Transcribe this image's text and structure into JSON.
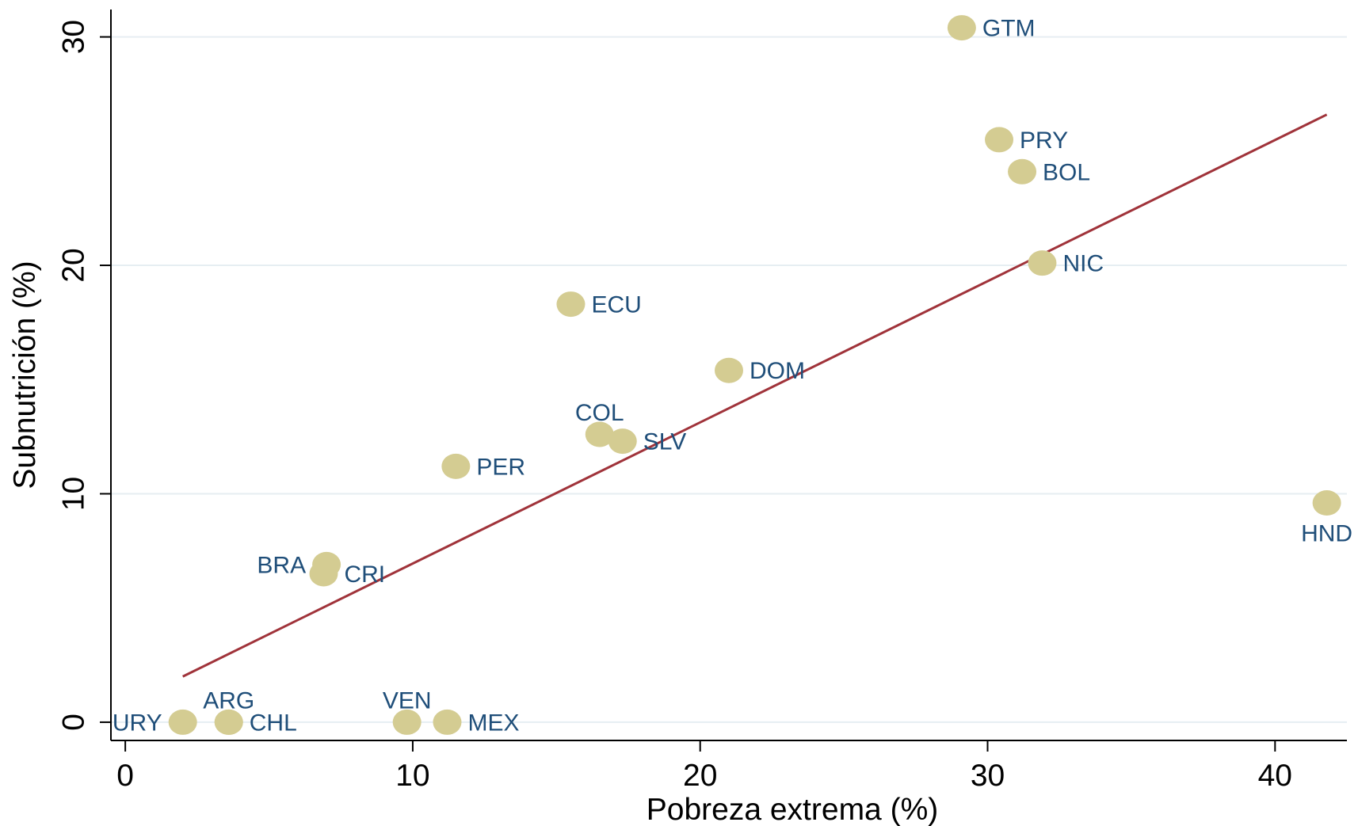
{
  "chart_data": {
    "type": "scatter",
    "xlabel": "Pobreza extrema (%)",
    "ylabel": "Subnutrición (%)",
    "xlim": [
      -0.5,
      42.5
    ],
    "ylim": [
      -0.8,
      31.2
    ],
    "xticks": [
      0,
      10,
      20,
      30,
      40
    ],
    "yticks": [
      0,
      10,
      20,
      30
    ],
    "grid": "horizontal",
    "legend": "none",
    "colors": {
      "points": "#d4cc92",
      "labels": "#1f4e79",
      "fit_line": "#a0333a",
      "grid": "#e6eef2",
      "axis": "#000000"
    },
    "points": [
      {
        "label": "GTM",
        "x": 29.1,
        "y": 30.4,
        "label_pos": "right"
      },
      {
        "label": "PRY",
        "x": 30.4,
        "y": 25.5,
        "label_pos": "right"
      },
      {
        "label": "BOL",
        "x": 31.2,
        "y": 24.1,
        "label_pos": "right"
      },
      {
        "label": "NIC",
        "x": 31.9,
        "y": 20.1,
        "label_pos": "right"
      },
      {
        "label": "ECU",
        "x": 15.5,
        "y": 18.3,
        "label_pos": "right"
      },
      {
        "label": "DOM",
        "x": 21.0,
        "y": 15.4,
        "label_pos": "right"
      },
      {
        "label": "COL",
        "x": 16.5,
        "y": 12.6,
        "label_pos": "above"
      },
      {
        "label": "SLV",
        "x": 17.3,
        "y": 12.3,
        "label_pos": "right"
      },
      {
        "label": "PER",
        "x": 11.5,
        "y": 11.2,
        "label_pos": "right"
      },
      {
        "label": "HND",
        "x": 41.8,
        "y": 9.6,
        "label_pos": "below"
      },
      {
        "label": "BRA",
        "x": 7.0,
        "y": 6.9,
        "label_pos": "left"
      },
      {
        "label": "CRI",
        "x": 6.9,
        "y": 6.5,
        "label_pos": "right"
      },
      {
        "label": "URY",
        "x": 2.0,
        "y": 0.0,
        "label_pos": "left"
      },
      {
        "label": "ARG",
        "x": 3.6,
        "y": 0.0,
        "label_pos": "above"
      },
      {
        "label": "CHL",
        "x": 3.6,
        "y": 0.0,
        "label_pos": "right"
      },
      {
        "label": "VEN",
        "x": 9.8,
        "y": 0.0,
        "label_pos": "above"
      },
      {
        "label": "MEX",
        "x": 11.2,
        "y": 0.0,
        "label_pos": "right"
      }
    ],
    "fit_line": {
      "x": [
        2.0,
        41.8
      ],
      "y": [
        2.0,
        26.6
      ]
    }
  }
}
